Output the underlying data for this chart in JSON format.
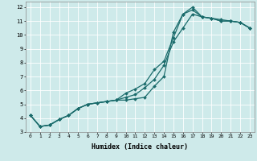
{
  "xlabel": "Humidex (Indice chaleur)",
  "bg_color": "#ceeaea",
  "line_color": "#1a6b6b",
  "grid_color": "#ffffff",
  "xlim": [
    -0.5,
    23.5
  ],
  "ylim": [
    3,
    12.4
  ],
  "xticks": [
    0,
    1,
    2,
    3,
    4,
    5,
    6,
    7,
    8,
    9,
    10,
    11,
    12,
    13,
    14,
    15,
    16,
    17,
    18,
    19,
    20,
    21,
    22,
    23
  ],
  "yticks": [
    3,
    4,
    5,
    6,
    7,
    8,
    9,
    10,
    11,
    12
  ],
  "line1_x": [
    0,
    1,
    2,
    3,
    4,
    5,
    6,
    7,
    8,
    9,
    10,
    11,
    12,
    13,
    14,
    15,
    16,
    17,
    18,
    19,
    20,
    21,
    22,
    23
  ],
  "line1_y": [
    4.2,
    3.4,
    3.5,
    3.9,
    4.2,
    4.7,
    5.0,
    5.1,
    5.2,
    5.3,
    5.3,
    5.4,
    5.5,
    6.3,
    7.0,
    10.2,
    11.5,
    11.8,
    11.3,
    11.2,
    11.1,
    11.0,
    10.9,
    10.5
  ],
  "line2_x": [
    0,
    1,
    2,
    3,
    4,
    5,
    6,
    7,
    8,
    9,
    10,
    11,
    12,
    13,
    14,
    15,
    16,
    17,
    18,
    19,
    20,
    21,
    22,
    23
  ],
  "line2_y": [
    4.2,
    3.4,
    3.5,
    3.9,
    4.2,
    4.7,
    5.0,
    5.1,
    5.2,
    5.3,
    5.5,
    5.7,
    6.2,
    6.8,
    7.8,
    9.5,
    10.5,
    11.5,
    11.3,
    11.2,
    11.0,
    11.0,
    10.9,
    10.5
  ],
  "line3_x": [
    0,
    1,
    2,
    3,
    4,
    5,
    6,
    7,
    8,
    9,
    10,
    11,
    12,
    13,
    14,
    15,
    16,
    17,
    18,
    19,
    20,
    21,
    22,
    23
  ],
  "line3_y": [
    4.2,
    3.4,
    3.5,
    3.9,
    4.2,
    4.7,
    5.0,
    5.1,
    5.2,
    5.3,
    5.8,
    6.1,
    6.5,
    7.5,
    8.1,
    9.8,
    11.5,
    12.0,
    11.3,
    11.2,
    11.0,
    11.0,
    10.9,
    10.5
  ]
}
